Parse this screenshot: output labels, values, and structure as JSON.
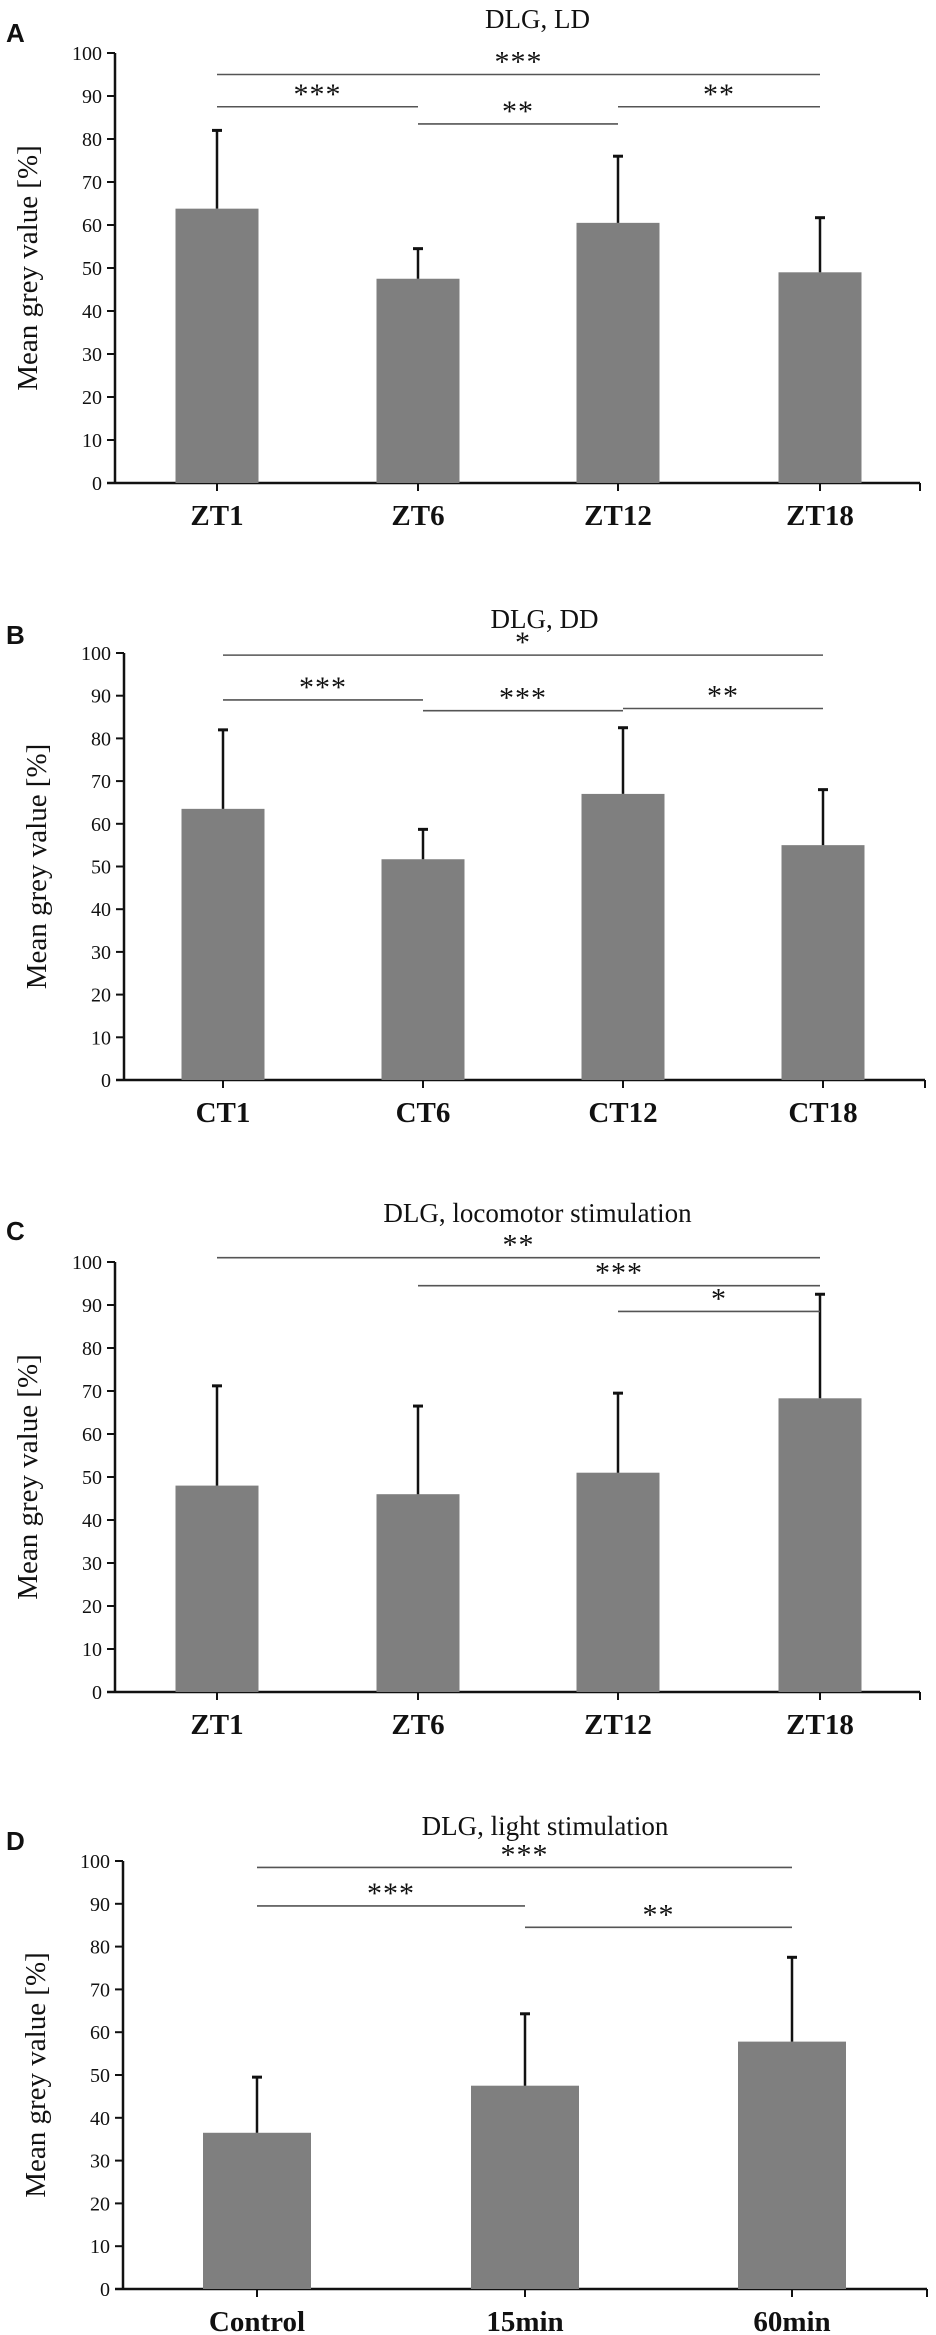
{
  "colors": {
    "bar": "#7f7f7f",
    "axis": "#111111",
    "sigline": "#555555"
  },
  "chart_data": [
    {
      "panel": "A",
      "type": "bar",
      "title": "DLG, LD",
      "ylabel": "Mean grey value [%]",
      "ylim": [
        0,
        100
      ],
      "yticks": [
        "0",
        "10",
        "20",
        "30",
        "40",
        "50",
        "60",
        "70",
        "80",
        "90",
        "100"
      ],
      "categories": [
        "ZT1",
        "ZT6",
        "ZT12",
        "ZT18"
      ],
      "values": [
        63.8,
        47.5,
        60.5,
        49
      ],
      "error_upper": [
        82,
        54.5,
        76,
        61.7
      ],
      "significance": [
        {
          "from": 0,
          "to": 3,
          "y": 95,
          "label": "***"
        },
        {
          "from": 0,
          "to": 1,
          "y": 87.5,
          "label": "***"
        },
        {
          "from": 1,
          "to": 2,
          "y": 83.5,
          "label": "**"
        },
        {
          "from": 2,
          "to": 3,
          "y": 87.5,
          "label": "**"
        }
      ]
    },
    {
      "panel": "B",
      "type": "bar",
      "title": "DLG, DD",
      "ylabel": "Mean grey value [%]",
      "ylim": [
        0,
        100
      ],
      "yticks": [
        "0",
        "10",
        "20",
        "30",
        "40",
        "50",
        "60",
        "70",
        "80",
        "90",
        "100"
      ],
      "categories": [
        "CT1",
        "CT6",
        "CT12",
        "CT18"
      ],
      "values": [
        63.5,
        51.7,
        67,
        55
      ],
      "error_upper": [
        82,
        58.7,
        82.5,
        68
      ],
      "significance": [
        {
          "from": 0,
          "to": 3,
          "y": 99.5,
          "label": "*"
        },
        {
          "from": 0,
          "to": 1,
          "y": 89,
          "label": "***"
        },
        {
          "from": 1,
          "to": 2,
          "y": 86.5,
          "label": "***"
        },
        {
          "from": 2,
          "to": 3,
          "y": 87,
          "label": "**"
        }
      ]
    },
    {
      "panel": "C",
      "type": "bar",
      "title": "DLG, locomotor stimulation",
      "ylabel": "Mean grey value [%]",
      "ylim": [
        0,
        100
      ],
      "yticks": [
        "0",
        "10",
        "20",
        "30",
        "40",
        "50",
        "60",
        "70",
        "80",
        "90",
        "100"
      ],
      "categories": [
        "ZT1",
        "ZT6",
        "ZT12",
        "ZT18"
      ],
      "values": [
        48,
        46,
        51,
        68.3
      ],
      "error_upper": [
        71.2,
        66.5,
        69.5,
        92.5
      ],
      "significance": [
        {
          "from": 0,
          "to": 3,
          "y": 101,
          "label": "**"
        },
        {
          "from": 1,
          "to": 3,
          "y": 94.5,
          "label": "***"
        },
        {
          "from": 2,
          "to": 3,
          "y": 88.5,
          "label": "*"
        }
      ]
    },
    {
      "panel": "D",
      "type": "bar",
      "title": "DLG, light stimulation",
      "ylabel": "Mean grey value [%]",
      "ylim": [
        0,
        100
      ],
      "yticks": [
        "0",
        "10",
        "20",
        "30",
        "40",
        "50",
        "60",
        "70",
        "80",
        "90",
        "100"
      ],
      "categories": [
        "Control",
        "15min",
        "60min"
      ],
      "values": [
        36.5,
        47.5,
        57.8
      ],
      "error_upper": [
        49.5,
        64.3,
        77.5
      ],
      "significance": [
        {
          "from": 0,
          "to": 2,
          "y": 98.5,
          "label": "***"
        },
        {
          "from": 0,
          "to": 1,
          "y": 89.5,
          "label": "***"
        },
        {
          "from": 1,
          "to": 2,
          "y": 84.5,
          "label": "**"
        }
      ]
    }
  ]
}
